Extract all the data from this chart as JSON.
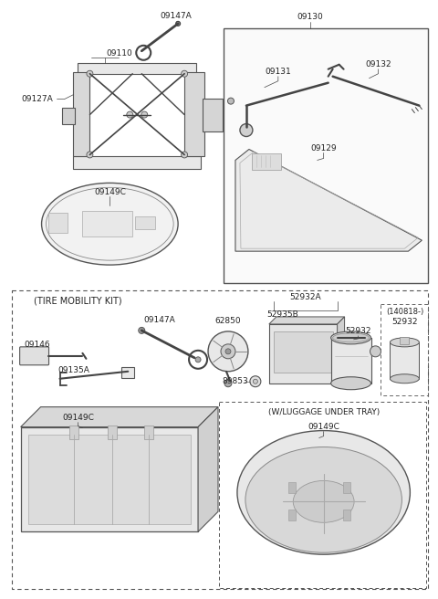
{
  "bg_color": "#ffffff",
  "lc": "#444444",
  "lc2": "#666666",
  "labels": {
    "09147A_top": "09147A",
    "09110": "09110",
    "09127A": "09127A",
    "09149C_top": "09149C",
    "09130": "09130",
    "09131": "09131",
    "09132": "09132",
    "09129": "09129",
    "tire_mobility": "(TIRE MOBILITY KIT)",
    "52932A": "52932A",
    "09147A_bot": "09147A",
    "09135A": "09135A",
    "09146": "09146",
    "62850": "62850",
    "89853": "89853",
    "52935B": "52935B",
    "52932_bot": "52932",
    "140818": "(140818-)",
    "52932_side": "52932",
    "09149C_box": "09149C",
    "luggage_tray": "(W/LUGGAGE UNDER TRAY)",
    "09149C_round": "09149C"
  }
}
